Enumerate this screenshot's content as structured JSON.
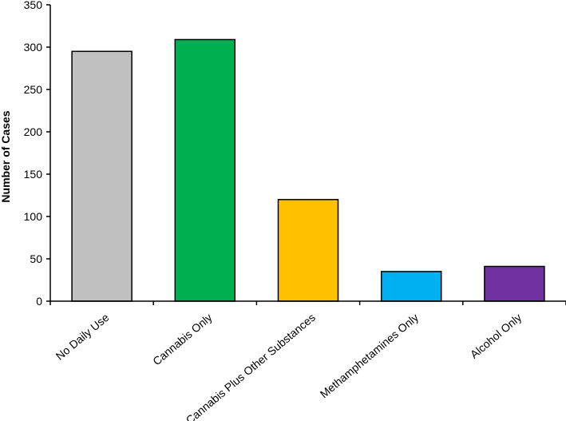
{
  "chart_data": {
    "type": "bar",
    "title": "",
    "xlabel": "",
    "ylabel": "Number of Cases",
    "categories": [
      "No Daily Use",
      "Cannabis Only",
      "Cannabis Plus Other Substances",
      "Methamphetamines Only",
      "Alcohol Only"
    ],
    "values": [
      295,
      309,
      120,
      35,
      41
    ],
    "colors": [
      "#c0c0c0",
      "#00b050",
      "#ffc000",
      "#00b0f0",
      "#7030a0"
    ],
    "ylim": [
      0,
      350
    ],
    "yticks": [
      "0",
      "50",
      "100",
      "150",
      "200",
      "250",
      "300",
      "350"
    ],
    "grid": false,
    "legend": "none"
  }
}
